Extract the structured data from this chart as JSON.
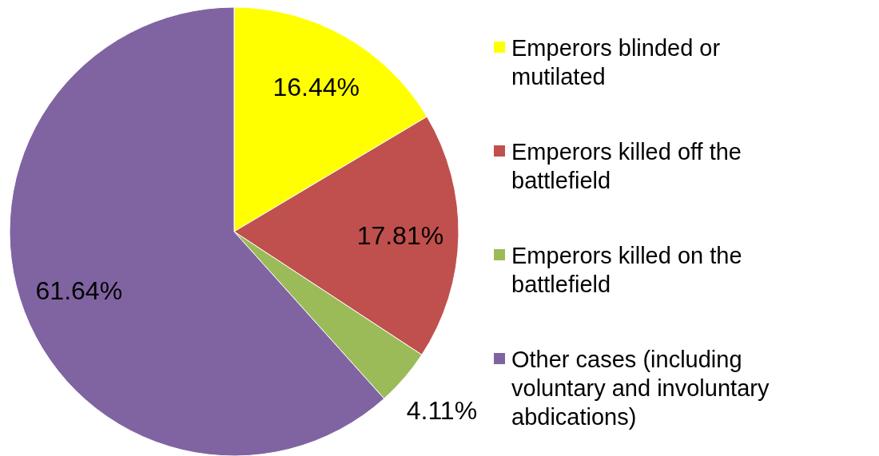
{
  "chart_data": {
    "type": "pie",
    "categories": [
      "Emperors blinded or mutilated",
      "Emperors killed off the battlefield",
      "Emperors killed on the battlefield",
      "Other cases (including voluntary and involuntary abdications)"
    ],
    "values": [
      16.44,
      17.81,
      4.11,
      61.64
    ],
    "value_labels": [
      "16.44%",
      "17.81%",
      "4.11%",
      "61.64%"
    ],
    "colors": [
      "#ffff00",
      "#c0504d",
      "#9bbb59",
      "#8064a2"
    ],
    "legend": "right"
  }
}
